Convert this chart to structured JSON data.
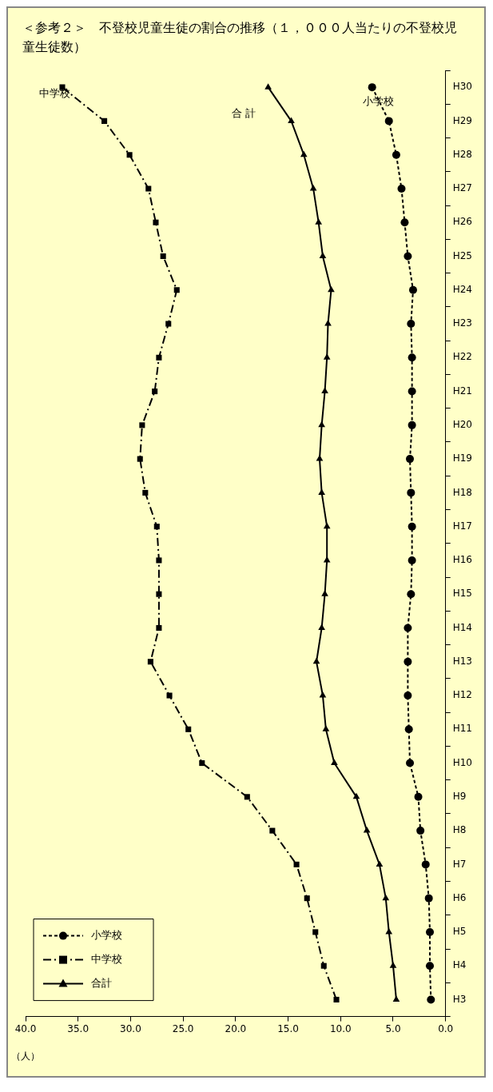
{
  "chart_data": {
    "type": "line",
    "orientation": "horizontal",
    "title": "＜参考２＞　不登校児童生徒の割合の推移（１，０００人当たりの不登校児童生徒数）",
    "xlabel": "（人）",
    "categories": [
      "H30",
      "H29",
      "H28",
      "H27",
      "H26",
      "H25",
      "H24",
      "H23",
      "H22",
      "H21",
      "H20",
      "H19",
      "H18",
      "H17",
      "H16",
      "H15",
      "H14",
      "H13",
      "H12",
      "H11",
      "H10",
      "H9",
      "H8",
      "H7",
      "H6",
      "H5",
      "H4",
      "H3"
    ],
    "series": [
      {
        "name": "小学校",
        "color": "#000000",
        "marker": "circle",
        "line_style": "dashed",
        "values": [
          7.0,
          5.4,
          4.7,
          4.2,
          3.9,
          3.6,
          3.1,
          3.3,
          3.2,
          3.2,
          3.2,
          3.4,
          3.3,
          3.2,
          3.2,
          3.3,
          3.6,
          3.6,
          3.6,
          3.5,
          3.4,
          2.6,
          2.4,
          1.9,
          1.6,
          1.5,
          1.5,
          1.4
        ]
      },
      {
        "name": "中学校",
        "color": "#000000",
        "marker": "square",
        "line_style": "dashdot",
        "values": [
          36.5,
          32.5,
          30.1,
          28.3,
          27.6,
          26.9,
          25.6,
          26.4,
          27.3,
          27.7,
          28.9,
          29.1,
          28.6,
          27.5,
          27.3,
          27.3,
          27.3,
          28.1,
          26.3,
          24.5,
          23.2,
          18.9,
          16.5,
          14.2,
          13.2,
          12.4,
          11.6,
          10.4
        ]
      },
      {
        "name": "合計",
        "color": "#000000",
        "marker": "triangle",
        "line_style": "solid",
        "values": [
          16.9,
          14.7,
          13.5,
          12.6,
          12.1,
          11.7,
          10.9,
          11.2,
          11.3,
          11.5,
          11.8,
          12.0,
          11.8,
          11.3,
          11.3,
          11.5,
          11.8,
          12.3,
          11.7,
          11.4,
          10.6,
          8.5,
          7.5,
          6.3,
          5.7,
          5.4,
          5.0,
          4.7
        ]
      }
    ],
    "xlim": [
      40,
      0
    ],
    "xticks": [
      {
        "value": 40,
        "label": "40.0"
      },
      {
        "value": 35,
        "label": "35.0"
      },
      {
        "value": 30,
        "label": "30.0"
      },
      {
        "value": 25,
        "label": "25.0"
      },
      {
        "value": 20,
        "label": "20.0"
      },
      {
        "value": 15,
        "label": "15.0"
      },
      {
        "value": 10,
        "label": "10.0"
      },
      {
        "value": 5,
        "label": "5.0"
      },
      {
        "value": 0,
        "label": "0.0"
      }
    ],
    "grid": false,
    "legend": "bottom left",
    "annotations": [
      "中学校",
      "合 計",
      "小学校"
    ]
  }
}
